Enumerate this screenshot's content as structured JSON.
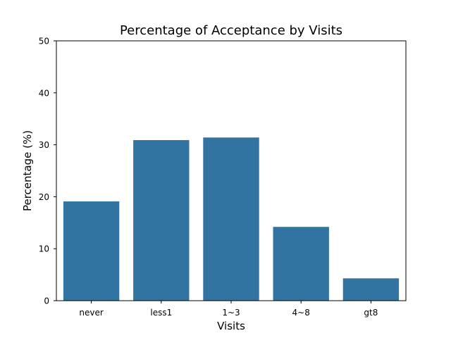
{
  "chart_data": {
    "type": "bar",
    "title": "Percentage of Acceptance by Visits",
    "xlabel": "Visits",
    "ylabel": "Percentage (%)",
    "categories": [
      "never",
      "less1",
      "1~3",
      "4~8",
      "gt8"
    ],
    "values": [
      19.1,
      30.9,
      31.4,
      14.2,
      4.3
    ],
    "ylim": [
      0,
      50
    ],
    "yticks": [
      0,
      10,
      20,
      30,
      40,
      50
    ],
    "grid": false,
    "legend": "none",
    "bar_color": "#3274a1"
  }
}
